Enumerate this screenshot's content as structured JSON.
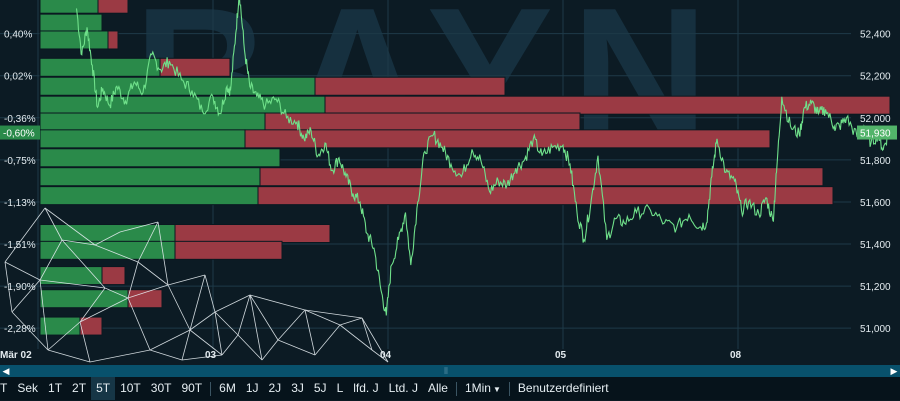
{
  "chart_data": {
    "type": "line",
    "watermark": "BAYN",
    "x_labels": [
      "Mär 02",
      "03",
      "04",
      "05",
      "08"
    ],
    "y_left_ticks": [
      "0,40%",
      "0,02%",
      "-0,36%",
      "-0,75%",
      "-1,13%",
      "-1,51%",
      "-1,90%",
      "-2,28%"
    ],
    "y_left_current": "-0,60%",
    "y_right_ticks": [
      52400,
      52200,
      52000,
      51800,
      51600,
      51400,
      51200,
      51000
    ],
    "y_right_tick_labels": [
      "52,400",
      "52,200",
      "52,000",
      "51,800",
      "51,600",
      "51,400",
      "51,200",
      "51,000"
    ],
    "y_right_range": [
      50920,
      52560
    ],
    "current_value": 51930,
    "current_value_label": "51,930",
    "x_range_days": [
      0,
      4.6
    ],
    "day_positions": [
      0,
      1,
      2,
      3,
      4
    ],
    "price_series": {
      "points": [
        [
          0.22,
          52520
        ],
        [
          0.25,
          52300
        ],
        [
          0.28,
          52430
        ],
        [
          0.31,
          52250
        ],
        [
          0.34,
          52050
        ],
        [
          0.37,
          52140
        ],
        [
          0.41,
          52060
        ],
        [
          0.45,
          52150
        ],
        [
          0.5,
          52080
        ],
        [
          0.55,
          52170
        ],
        [
          0.6,
          52120
        ],
        [
          0.65,
          52300
        ],
        [
          0.7,
          52230
        ],
        [
          0.75,
          52270
        ],
        [
          0.82,
          52180
        ],
        [
          0.88,
          52130
        ],
        [
          0.94,
          52030
        ],
        [
          1.0,
          52100
        ],
        [
          1.04,
          52020
        ],
        [
          1.08,
          52150
        ],
        [
          1.1,
          52130
        ],
        [
          1.13,
          52400
        ],
        [
          1.15,
          52600
        ],
        [
          1.18,
          52320
        ],
        [
          1.21,
          52150
        ],
        [
          1.25,
          52100
        ],
        [
          1.3,
          52060
        ],
        [
          1.36,
          52090
        ],
        [
          1.42,
          52000
        ],
        [
          1.48,
          51980
        ],
        [
          1.52,
          51900
        ],
        [
          1.56,
          51940
        ],
        [
          1.6,
          51820
        ],
        [
          1.64,
          51880
        ],
        [
          1.68,
          51750
        ],
        [
          1.72,
          51810
        ],
        [
          1.76,
          51720
        ],
        [
          1.8,
          51640
        ],
        [
          1.84,
          51600
        ],
        [
          1.88,
          51450
        ],
        [
          1.92,
          51380
        ],
        [
          1.96,
          51180
        ],
        [
          1.99,
          51060
        ],
        [
          2.02,
          51300
        ],
        [
          2.06,
          51420
        ],
        [
          2.1,
          51550
        ],
        [
          2.13,
          51300
        ],
        [
          2.17,
          51600
        ],
        [
          2.21,
          51840
        ],
        [
          2.26,
          51920
        ],
        [
          2.31,
          51860
        ],
        [
          2.36,
          51780
        ],
        [
          2.42,
          51720
        ],
        [
          2.48,
          51850
        ],
        [
          2.53,
          51800
        ],
        [
          2.58,
          51650
        ],
        [
          2.63,
          51700
        ],
        [
          2.68,
          51680
        ],
        [
          2.73,
          51760
        ],
        [
          2.78,
          51800
        ],
        [
          2.83,
          51900
        ],
        [
          2.88,
          51820
        ],
        [
          2.94,
          51860
        ],
        [
          3.0,
          51870
        ],
        [
          3.04,
          51780
        ],
        [
          3.08,
          51550
        ],
        [
          3.12,
          51420
        ],
        [
          3.16,
          51600
        ],
        [
          3.2,
          51820
        ],
        [
          3.25,
          51420
        ],
        [
          3.3,
          51520
        ],
        [
          3.35,
          51500
        ],
        [
          3.42,
          51550
        ],
        [
          3.5,
          51560
        ],
        [
          3.58,
          51500
        ],
        [
          3.65,
          51480
        ],
        [
          3.72,
          51540
        ],
        [
          3.78,
          51480
        ],
        [
          3.82,
          51500
        ],
        [
          3.85,
          51720
        ],
        [
          3.88,
          51900
        ],
        [
          3.93,
          51740
        ],
        [
          3.98,
          51700
        ],
        [
          4.02,
          51560
        ],
        [
          4.06,
          51600
        ],
        [
          4.12,
          51540
        ],
        [
          4.16,
          51620
        ],
        [
          4.2,
          51510
        ],
        [
          4.22,
          51740
        ],
        [
          4.25,
          52100
        ],
        [
          4.3,
          51960
        ],
        [
          4.35,
          51920
        ],
        [
          4.38,
          52050
        ],
        [
          4.42,
          52070
        ],
        [
          4.46,
          52020
        ],
        [
          4.5,
          52040
        ],
        [
          4.55,
          51960
        ],
        [
          4.58,
          51960
        ],
        [
          4.62,
          52000
        ],
        [
          4.68,
          51910
        ],
        [
          4.72,
          51960
        ],
        [
          4.76,
          51880
        ],
        [
          4.8,
          51920
        ],
        [
          4.83,
          51850
        ],
        [
          4.86,
          51930
        ]
      ]
    },
    "volume_profile": [
      {
        "price": 52540,
        "buy": 58,
        "sell": 88
      },
      {
        "price": 52450,
        "buy": 62,
        "sell": 0
      },
      {
        "price": 52370,
        "buy": 68,
        "sell": 78
      },
      {
        "price": 52240,
        "buy": 120,
        "sell": 190
      },
      {
        "price": 52150,
        "buy": 275,
        "sell": 465
      },
      {
        "price": 52060,
        "buy": 285,
        "sell": 850
      },
      {
        "price": 51980,
        "buy": 225,
        "sell": 540
      },
      {
        "price": 51900,
        "buy": 205,
        "sell": 730
      },
      {
        "price": 51810,
        "buy": 240,
        "sell": 0
      },
      {
        "price": 51720,
        "buy": 220,
        "sell": 783
      },
      {
        "price": 51630,
        "buy": 218,
        "sell": 793
      },
      {
        "price": 51450,
        "buy": 135,
        "sell": 290
      },
      {
        "price": 51370,
        "buy": 135,
        "sell": 242
      },
      {
        "price": 51250,
        "buy": 62,
        "sell": 85
      },
      {
        "price": 51140,
        "buy": 88,
        "sell": 122
      },
      {
        "price": 51010,
        "buy": 40,
        "sell": 62
      }
    ],
    "colors": {
      "line": "#6fe08a",
      "buy": "#2a8a4a",
      "sell": "#9b3a44",
      "grid": "#1e3a48",
      "axis_text": "#e3ebef",
      "watermark": "#16303f",
      "badge_left": "#2a8a4a",
      "badge_right": "#52b46a",
      "mesh": "#e6edf1"
    }
  },
  "toolbar": {
    "buttons": [
      "T",
      "Sek",
      "1T",
      "2T",
      "5T",
      "10T",
      "30T",
      "90T",
      "6M",
      "1J",
      "2J",
      "3J",
      "5J",
      "L",
      "lfd. J",
      "Ltd. J",
      "Alle"
    ],
    "active": "5T",
    "interval": "1Min",
    "custom": "Benutzerdefiniert"
  }
}
